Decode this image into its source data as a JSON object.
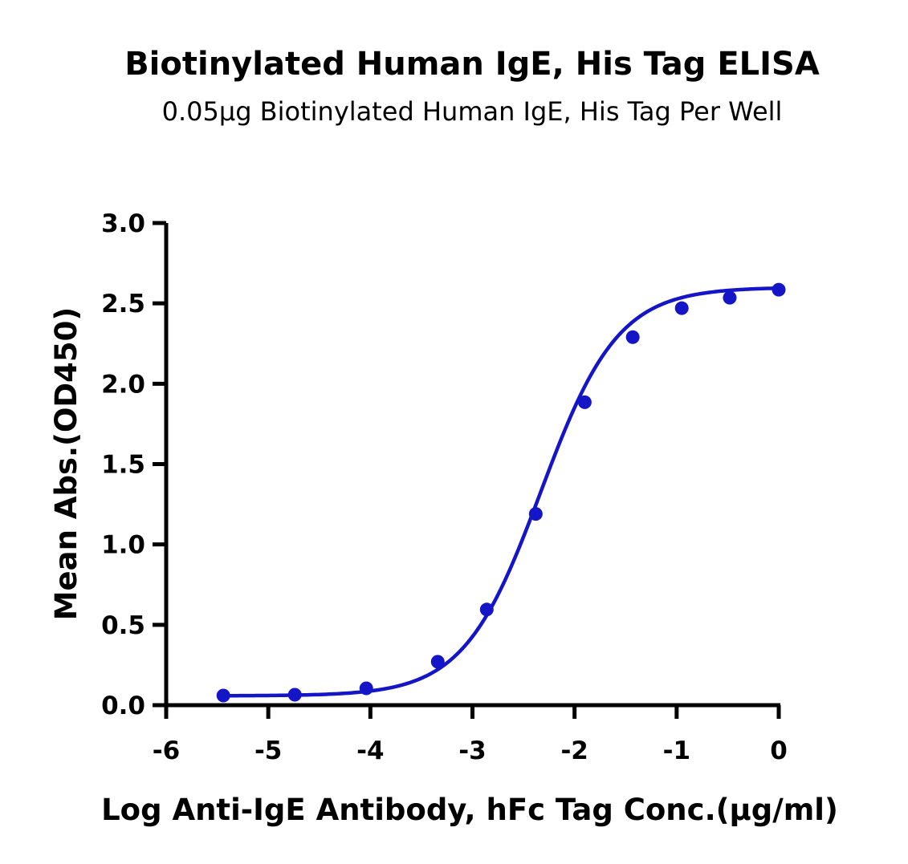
{
  "chart_data": {
    "type": "scatter",
    "title": "Biotinylated Human IgE, His Tag ELISA",
    "subtitle": "0.05μg Biotinylated Human IgE, His Tag Per Well",
    "xlabel": "Log Anti-IgE Antibody, hFc Tag Conc.(μg/ml)",
    "ylabel": "Mean Abs.(OD450)",
    "xlim": [
      -6,
      0
    ],
    "ylim": [
      0,
      3.0
    ],
    "x_ticks": [
      -6,
      -5,
      -4,
      -3,
      -2,
      -1,
      0
    ],
    "x_tick_labels": [
      "-6",
      "-5",
      "-4",
      "-3",
      "-2",
      "-1",
      "0"
    ],
    "y_ticks": [
      0,
      0.5,
      1.0,
      1.5,
      2.0,
      2.5,
      3.0
    ],
    "y_tick_labels": [
      "0.0",
      "0.5",
      "1.0",
      "1.5",
      "2.0",
      "2.5",
      "3.0"
    ],
    "grid": false,
    "legend": "none",
    "color": "#1515c8",
    "series": [
      {
        "x": [
          -5.44,
          -4.74,
          -4.04,
          -3.34,
          -2.86,
          -2.38,
          -1.9,
          -1.43,
          -0.95,
          -0.48,
          0.0
        ],
        "y": [
          0.06,
          0.065,
          0.105,
          0.27,
          0.595,
          1.19,
          1.885,
          2.29,
          2.47,
          2.535,
          2.585
        ],
        "fit": "4PL sigmoid"
      }
    ]
  }
}
